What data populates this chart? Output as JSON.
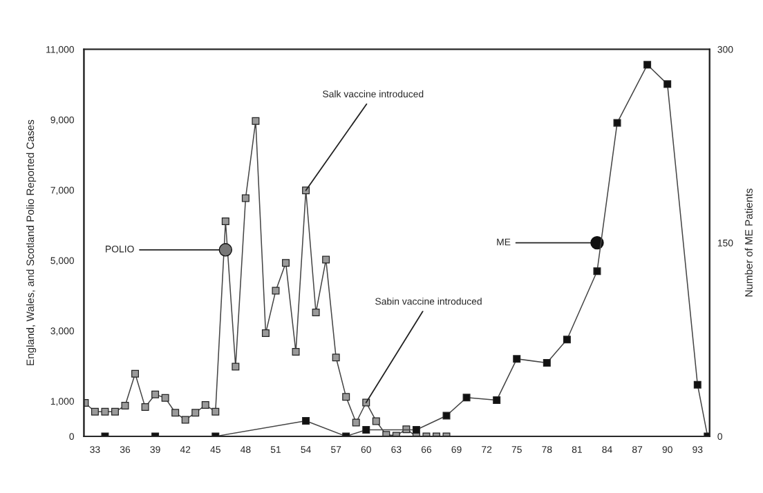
{
  "chart_data": {
    "type": "line",
    "ylabel": "England, Wales, and Scotland Polio Reported Cases",
    "y2label": "Number of ME Patients",
    "xlim": [
      31.9,
      94.2
    ],
    "xticks": [
      33,
      36,
      39,
      42,
      45,
      48,
      51,
      54,
      57,
      60,
      63,
      66,
      69,
      72,
      75,
      78,
      81,
      84,
      87,
      90,
      93
    ],
    "ylim": [
      0,
      11000
    ],
    "yticks": [
      {
        "value": 0,
        "label": "0"
      },
      {
        "value": 1000,
        "label": "1,000"
      },
      {
        "value": 3000,
        "label": "3,000"
      },
      {
        "value": 5000,
        "label": "5,000"
      },
      {
        "value": 7000,
        "label": "7,000"
      },
      {
        "value": 9000,
        "label": "9,000"
      },
      {
        "value": 11000,
        "label": "11,000"
      }
    ],
    "y2lim": [
      0,
      300
    ],
    "y2ticks": [
      0,
      150,
      300
    ],
    "grid": false,
    "series": [
      {
        "color": "#9a9a9a",
        "marker": "square",
        "x": [
          32,
          33,
          34,
          35,
          36,
          37,
          38,
          39,
          40,
          41,
          42,
          43,
          44,
          45,
          46,
          47,
          48,
          49,
          50,
          51,
          52,
          53,
          54,
          55,
          56,
          57,
          58,
          59,
          60,
          61,
          62,
          63,
          64,
          65,
          66,
          67,
          68
        ],
        "values": [
          950,
          700,
          700,
          700,
          870,
          1780,
          830,
          1190,
          1090,
          670,
          470,
          670,
          890,
          700,
          6110,
          1980,
          6770,
          8960,
          2930,
          4140,
          4930,
          2400,
          6990,
          3520,
          5020,
          2240,
          1120,
          390,
          960,
          430,
          40,
          20,
          200,
          0,
          0,
          0,
          0
        ]
      },
      {
        "color": "#111111",
        "marker": "square",
        "axis": "y2",
        "x": [
          34,
          39,
          45,
          54,
          58,
          60,
          65,
          68,
          70,
          73,
          75,
          78,
          80,
          83,
          85,
          88,
          90,
          93,
          94
        ],
        "values": [
          0,
          0,
          0,
          12,
          0,
          5,
          5,
          16,
          30,
          28,
          60,
          57,
          75,
          128,
          243,
          288,
          273,
          40,
          0
        ]
      }
    ],
    "annotations": [
      {
        "text": "POLIO",
        "x": 46,
        "y": 5300
      },
      {
        "text": "ME",
        "x": 83,
        "y": 5500
      },
      {
        "text": "Salk vaccine introduced",
        "x": 54,
        "y": 6990
      },
      {
        "text": "Sabin vaccine introduced",
        "x": 60,
        "y": 960
      }
    ]
  }
}
